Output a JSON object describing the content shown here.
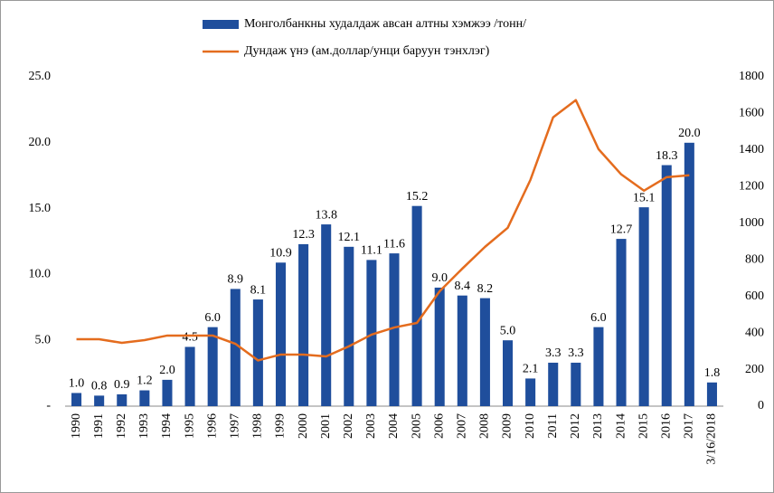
{
  "chart_data": {
    "type": "bar_line",
    "categories": [
      "1990",
      "1991",
      "1992",
      "1993",
      "1994",
      "1995",
      "1996",
      "1997",
      "1998",
      "1999",
      "2000",
      "2001",
      "2002",
      "2003",
      "2004",
      "2005",
      "2006",
      "2007",
      "2008",
      "2009",
      "2010",
      "2011",
      "2012",
      "2013",
      "2014",
      "2015",
      "2016",
      "2017",
      "3/16/2018"
    ],
    "series": [
      {
        "name": "Монголбанкны худалдаж авсан алтны хэмжээ /тонн/",
        "type": "bar",
        "color": "#1f4e9c",
        "values": [
          1.0,
          0.8,
          0.9,
          1.2,
          2.0,
          4.5,
          6.0,
          8.9,
          8.1,
          10.9,
          12.3,
          13.8,
          12.1,
          11.1,
          11.6,
          15.2,
          9.0,
          8.4,
          8.2,
          5.0,
          2.1,
          3.3,
          3.3,
          6.0,
          12.7,
          15.1,
          18.3,
          20.0,
          1.8
        ],
        "value_labels": [
          "1.0",
          "0.8",
          "0.9",
          "1.2",
          "2.0",
          "4.5",
          "6.0",
          "8.9",
          "8.1",
          "10.9",
          "12.3",
          "13.8",
          "12.1",
          "11.1",
          "11.6",
          "15.2",
          "9.0",
          "8.4",
          "8.2",
          "5.0",
          "2.1",
          "3.3",
          "3.3",
          "6.0",
          "12.7",
          "15.1",
          "18.3",
          "20.0",
          "1.8"
        ]
      },
      {
        "name": "Дундаж үнэ (ам.доллар/унци баруун тэнхлэг)",
        "type": "line",
        "axis": "y2",
        "color": "#e46c1e",
        "values": [
          366,
          366,
          346,
          361,
          386,
          386,
          386,
          341,
          250,
          282,
          282,
          272,
          327,
          391,
          430,
          455,
          628,
          752,
          871,
          975,
          1237,
          1579,
          1673,
          1405,
          1267,
          1178,
          1252,
          1262,
          null
        ]
      }
    ],
    "ylim": [
      0,
      25
    ],
    "yticks": [
      {
        "value": 0,
        "label": "-"
      },
      {
        "value": 5,
        "label": "5.0"
      },
      {
        "value": 10,
        "label": "10.0"
      },
      {
        "value": 15,
        "label": "15.0"
      },
      {
        "value": 20,
        "label": "20.0"
      },
      {
        "value": 25,
        "label": "25.0"
      }
    ],
    "y2lim": [
      0,
      1800
    ],
    "y2ticks": [
      0,
      200,
      400,
      600,
      800,
      1000,
      1200,
      1400,
      1600,
      1800
    ],
    "legend": "top",
    "grid": false
  }
}
